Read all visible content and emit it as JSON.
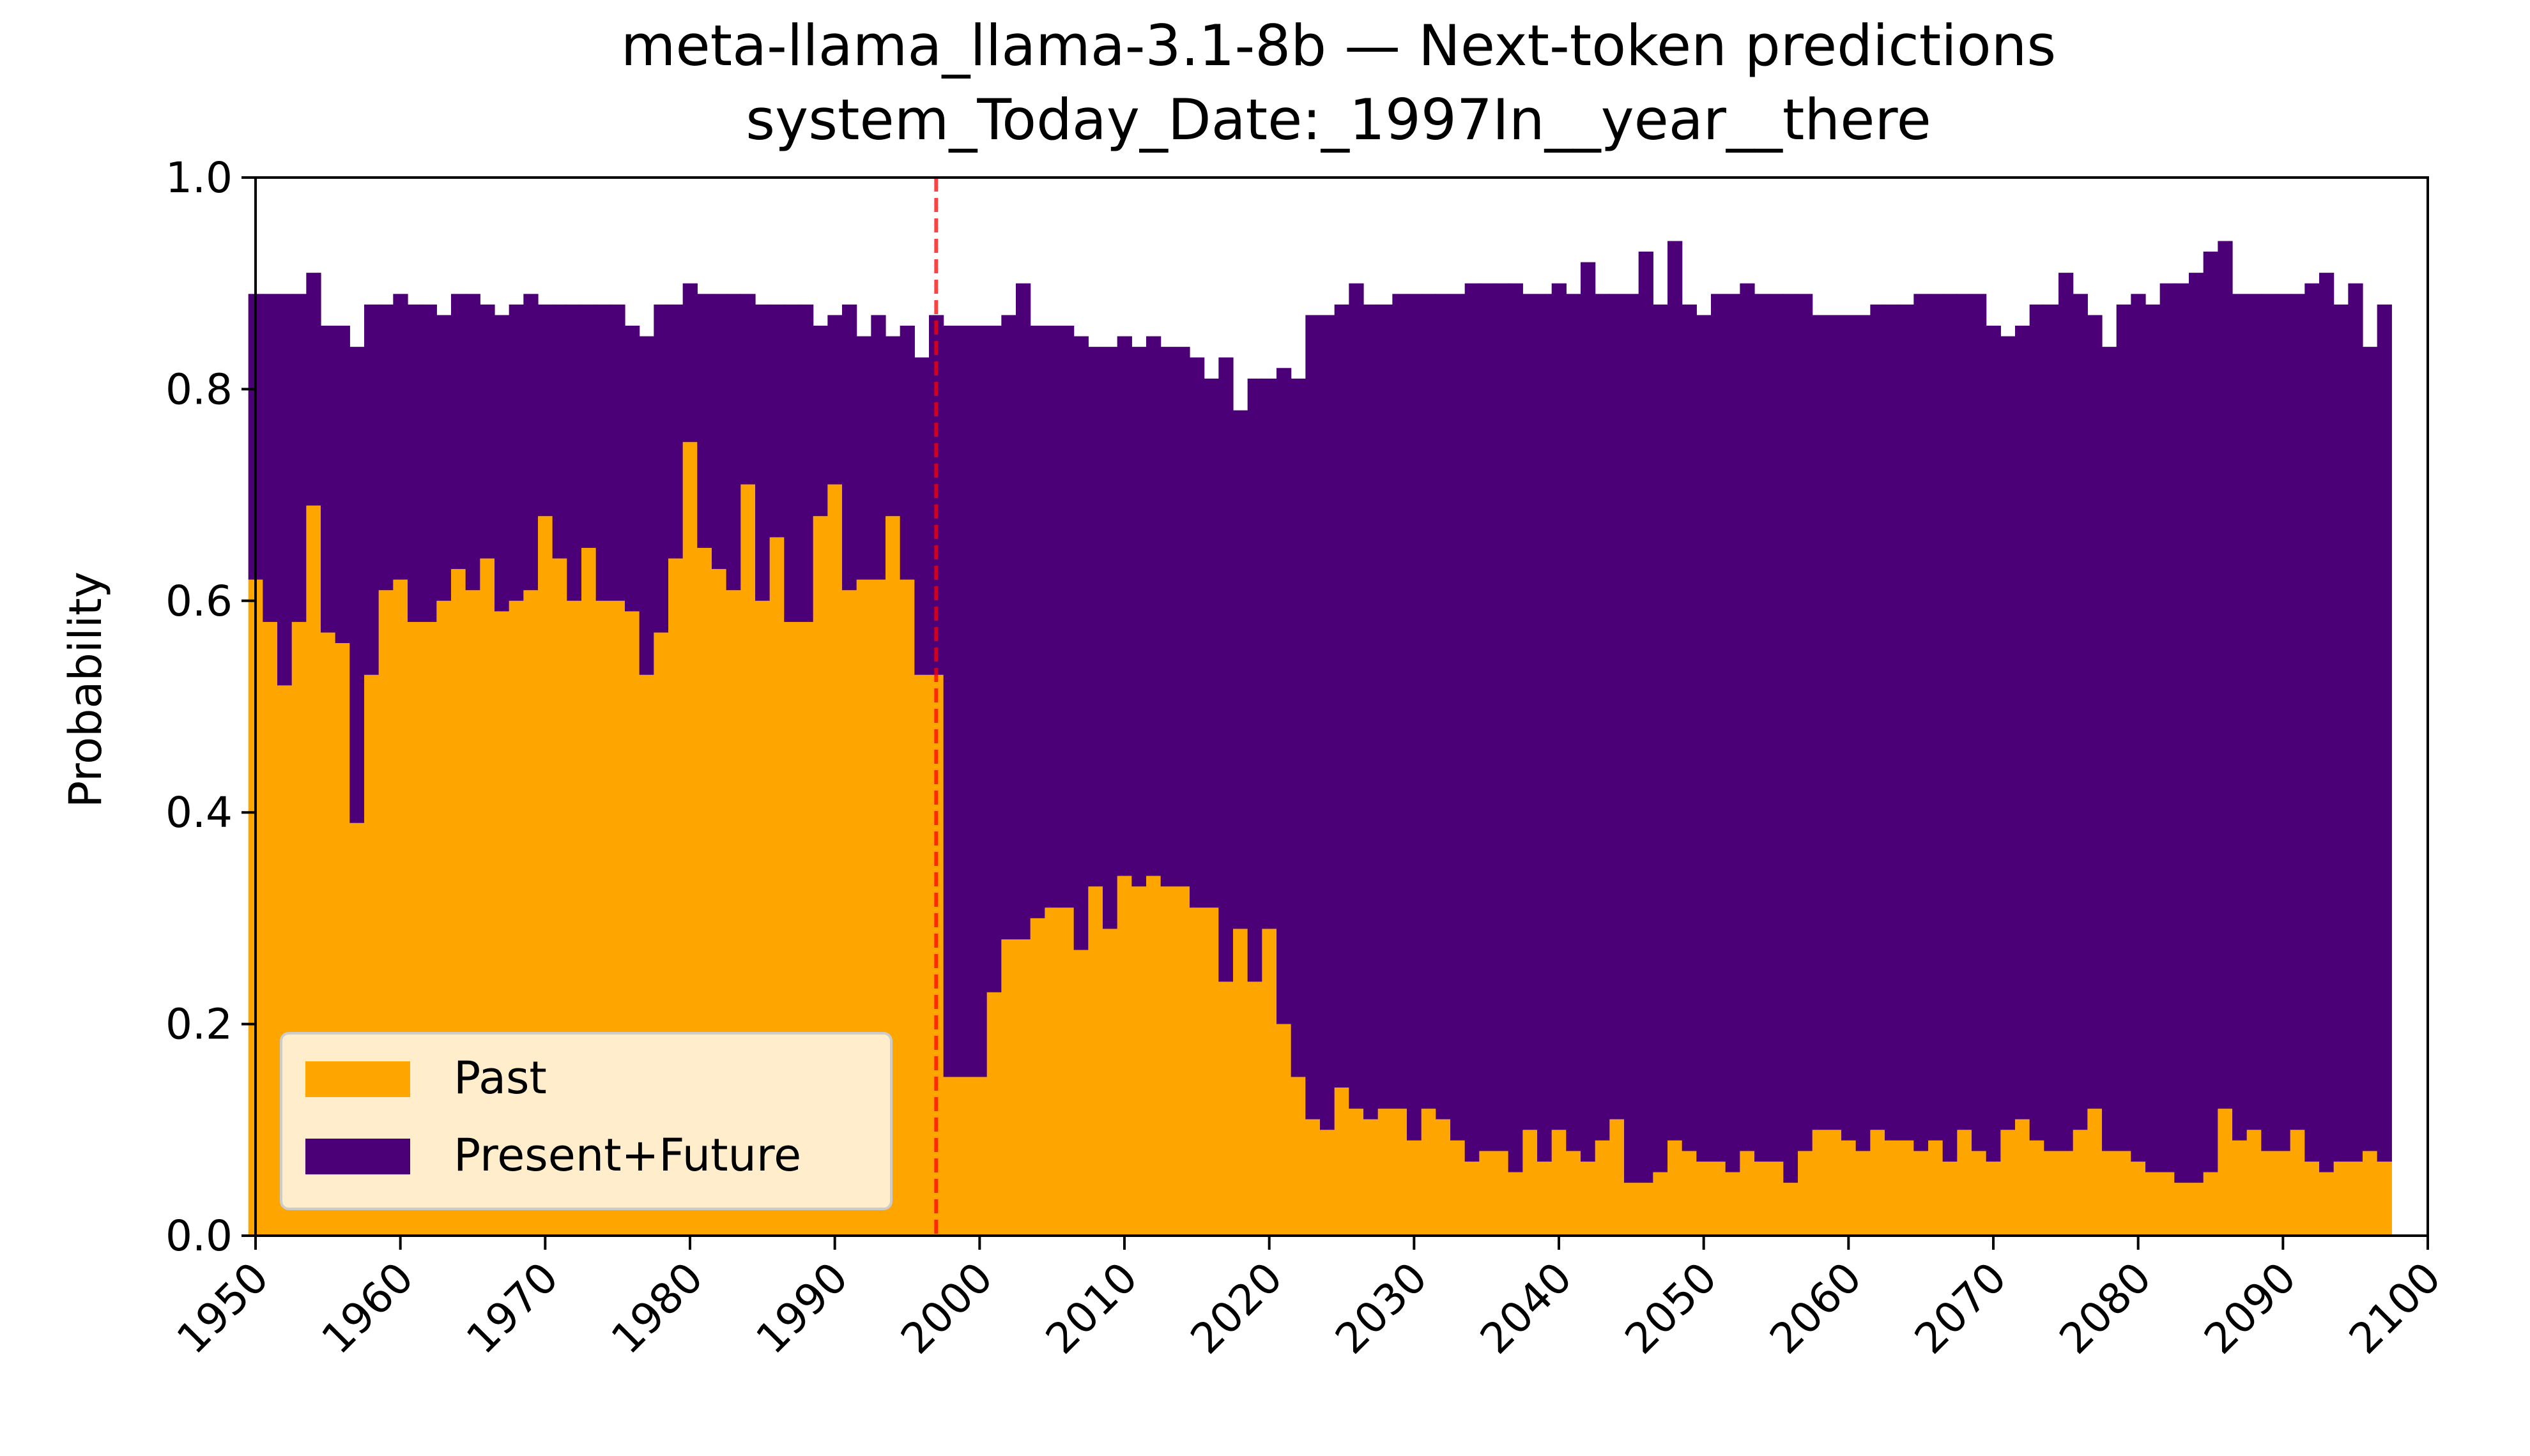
{
  "chart_data": {
    "type": "bar",
    "stacked": true,
    "title": "meta-llama_llama-3.1-8b — Next-token predictions",
    "subtitle": "system_Today_Date:_1997In__year__there",
    "xlabel": "",
    "ylabel": "Probability",
    "xlim": [
      1950,
      2100
    ],
    "ylim": [
      0.0,
      1.0
    ],
    "x_ticks": [
      "1950",
      "1960",
      "1970",
      "1980",
      "1990",
      "2000",
      "2010",
      "2020",
      "2030",
      "2040",
      "2050",
      "2060",
      "2070",
      "2080",
      "2090",
      "2100"
    ],
    "y_ticks": [
      "0.0",
      "0.2",
      "0.4",
      "0.6",
      "0.8",
      "1.0"
    ],
    "reference_line": {
      "x": 1997,
      "color": "#ff0000",
      "style": "dashed"
    },
    "grid": false,
    "legend_position": "lower-left",
    "x_start": 1950,
    "x_step": 1,
    "series": [
      {
        "name": "Past",
        "color": "#ffa500",
        "values": [
          0.62,
          0.58,
          0.52,
          0.58,
          0.69,
          0.57,
          0.56,
          0.39,
          0.53,
          0.61,
          0.62,
          0.58,
          0.58,
          0.6,
          0.63,
          0.61,
          0.64,
          0.59,
          0.6,
          0.61,
          0.68,
          0.64,
          0.6,
          0.65,
          0.6,
          0.6,
          0.59,
          0.53,
          0.57,
          0.64,
          0.75,
          0.65,
          0.63,
          0.61,
          0.71,
          0.6,
          0.66,
          0.58,
          0.58,
          0.68,
          0.71,
          0.61,
          0.62,
          0.62,
          0.68,
          0.62,
          0.53,
          0.53,
          0.15,
          0.15,
          0.15,
          0.23,
          0.28,
          0.28,
          0.3,
          0.31,
          0.31,
          0.27,
          0.33,
          0.29,
          0.34,
          0.33,
          0.34,
          0.33,
          0.33,
          0.31,
          0.31,
          0.24,
          0.29,
          0.24,
          0.29,
          0.2,
          0.15,
          0.11,
          0.1,
          0.14,
          0.12,
          0.11,
          0.12,
          0.12,
          0.09,
          0.12,
          0.11,
          0.09,
          0.07,
          0.08,
          0.08,
          0.06,
          0.1,
          0.07,
          0.1,
          0.08,
          0.07,
          0.09,
          0.11,
          0.05,
          0.05,
          0.06,
          0.09,
          0.08,
          0.07,
          0.07,
          0.06,
          0.08,
          0.07,
          0.07,
          0.05,
          0.08,
          0.1,
          0.1,
          0.09,
          0.08,
          0.1,
          0.09,
          0.09,
          0.08,
          0.09,
          0.07,
          0.1,
          0.08,
          0.07,
          0.1,
          0.11,
          0.09,
          0.08,
          0.08,
          0.1,
          0.12,
          0.08,
          0.08,
          0.07,
          0.06,
          0.06,
          0.05,
          0.05,
          0.06,
          0.12,
          0.09,
          0.1,
          0.08,
          0.08,
          0.1,
          0.07,
          0.06,
          0.07,
          0.07,
          0.08,
          0.07
        ]
      },
      {
        "name": "Present+Future",
        "color": "#4b0078",
        "values": [
          0.27,
          0.31,
          0.37,
          0.31,
          0.22,
          0.29,
          0.3,
          0.45,
          0.35,
          0.27,
          0.27,
          0.3,
          0.3,
          0.27,
          0.26,
          0.28,
          0.24,
          0.28,
          0.28,
          0.28,
          0.2,
          0.24,
          0.28,
          0.23,
          0.28,
          0.28,
          0.27,
          0.32,
          0.31,
          0.24,
          0.15,
          0.24,
          0.26,
          0.28,
          0.18,
          0.28,
          0.22,
          0.3,
          0.3,
          0.18,
          0.16,
          0.27,
          0.23,
          0.25,
          0.17,
          0.24,
          0.3,
          0.34,
          0.71,
          0.71,
          0.71,
          0.63,
          0.59,
          0.62,
          0.56,
          0.55,
          0.55,
          0.58,
          0.51,
          0.55,
          0.51,
          0.51,
          0.51,
          0.51,
          0.51,
          0.52,
          0.5,
          0.59,
          0.49,
          0.57,
          0.52,
          0.62,
          0.66,
          0.76,
          0.77,
          0.74,
          0.78,
          0.77,
          0.76,
          0.77,
          0.8,
          0.77,
          0.78,
          0.8,
          0.83,
          0.82,
          0.82,
          0.84,
          0.79,
          0.82,
          0.8,
          0.81,
          0.85,
          0.8,
          0.78,
          0.84,
          0.88,
          0.82,
          0.85,
          0.8,
          0.8,
          0.82,
          0.83,
          0.82,
          0.82,
          0.82,
          0.84,
          0.81,
          0.77,
          0.77,
          0.78,
          0.79,
          0.78,
          0.79,
          0.79,
          0.81,
          0.8,
          0.82,
          0.79,
          0.81,
          0.79,
          0.75,
          0.75,
          0.79,
          0.8,
          0.83,
          0.79,
          0.75,
          0.76,
          0.8,
          0.82,
          0.82,
          0.84,
          0.85,
          0.86,
          0.87,
          0.82,
          0.8,
          0.79,
          0.81,
          0.81,
          0.79,
          0.83,
          0.85,
          0.81,
          0.83,
          0.76,
          0.81
        ]
      }
    ]
  }
}
